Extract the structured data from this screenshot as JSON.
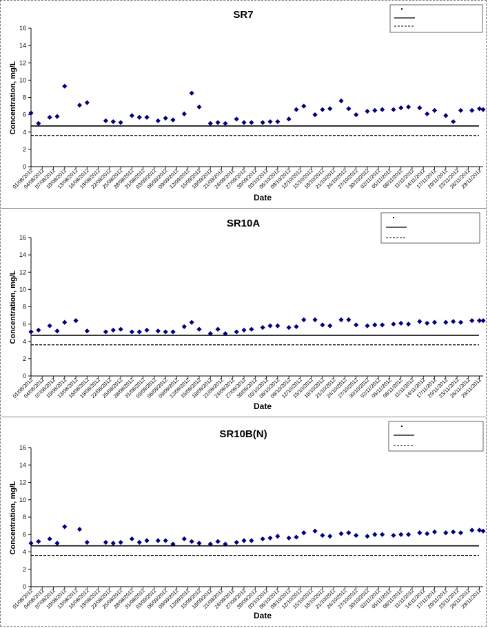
{
  "chart_data": [
    {
      "type": "scatter",
      "title": "SR7",
      "xlabel": "Date",
      "ylabel": "Concentration, mg/L",
      "ylim": [
        0,
        16
      ],
      "yticks": [
        0,
        2,
        4,
        6,
        8,
        10,
        12,
        14,
        16
      ],
      "xlim": [
        "01/08/2012",
        "30/11/2012"
      ],
      "xticks": [
        "01/08/2012",
        "04/08/2012",
        "07/08/2012",
        "10/08/2012",
        "13/08/2012",
        "16/08/2012",
        "19/08/2012",
        "22/08/2012",
        "25/08/2012",
        "28/08/2012",
        "31/08/2012",
        "03/09/2012",
        "06/09/2012",
        "09/09/2012",
        "12/09/2012",
        "15/09/2012",
        "18/09/2012",
        "21/09/2012",
        "24/09/2012",
        "27/09/2012",
        "30/09/2012",
        "03/10/2012",
        "06/10/2012",
        "09/10/2012",
        "12/10/2012",
        "15/10/2012",
        "18/10/2012",
        "21/10/2012",
        "24/10/2012",
        "27/10/2012",
        "30/10/2012",
        "02/11/2012",
        "05/11/2012",
        "08/11/2012",
        "11/11/2012",
        "14/11/2012",
        "17/11/2012",
        "20/11/2012",
        "23/11/2012",
        "26/11/2012",
        "29/11/2012"
      ],
      "grid": false,
      "legend_position": "top-right",
      "marker_color": "#000080",
      "series": [
        {
          "style": "markers",
          "points": [
            [
              "01/08/2012",
              6.2
            ],
            [
              "03/08/2012",
              5.0
            ],
            [
              "06/08/2012",
              5.7
            ],
            [
              "08/08/2012",
              5.8
            ],
            [
              "10/08/2012",
              9.3
            ],
            [
              "14/08/2012",
              7.1
            ],
            [
              "16/08/2012",
              7.4
            ],
            [
              "21/08/2012",
              5.3
            ],
            [
              "23/08/2012",
              5.2
            ],
            [
              "25/08/2012",
              5.1
            ],
            [
              "28/08/2012",
              5.9
            ],
            [
              "30/08/2012",
              5.7
            ],
            [
              "01/09/2012",
              5.7
            ],
            [
              "04/09/2012",
              5.3
            ],
            [
              "06/09/2012",
              5.6
            ],
            [
              "08/09/2012",
              5.4
            ],
            [
              "11/09/2012",
              6.1
            ],
            [
              "13/09/2012",
              8.5
            ],
            [
              "15/09/2012",
              6.9
            ],
            [
              "18/09/2012",
              5.0
            ],
            [
              "20/09/2012",
              5.1
            ],
            [
              "22/09/2012",
              5.0
            ],
            [
              "25/09/2012",
              5.5
            ],
            [
              "27/09/2012",
              5.1
            ],
            [
              "29/09/2012",
              5.1
            ],
            [
              "02/10/2012",
              5.1
            ],
            [
              "04/10/2012",
              5.2
            ],
            [
              "06/10/2012",
              5.2
            ],
            [
              "09/10/2012",
              5.5
            ],
            [
              "11/10/2012",
              6.6
            ],
            [
              "13/10/2012",
              7.0
            ],
            [
              "16/10/2012",
              6.0
            ],
            [
              "18/10/2012",
              6.6
            ],
            [
              "20/10/2012",
              6.7
            ],
            [
              "23/10/2012",
              7.6
            ],
            [
              "25/10/2012",
              6.7
            ],
            [
              "27/10/2012",
              6.0
            ],
            [
              "30/10/2012",
              6.4
            ],
            [
              "01/11/2012",
              6.5
            ],
            [
              "03/11/2012",
              6.6
            ],
            [
              "06/11/2012",
              6.6
            ],
            [
              "08/11/2012",
              6.8
            ],
            [
              "10/11/2012",
              6.9
            ],
            [
              "13/11/2012",
              6.8
            ],
            [
              "15/11/2012",
              6.1
            ],
            [
              "17/11/2012",
              6.5
            ],
            [
              "20/11/2012",
              5.9
            ],
            [
              "22/11/2012",
              5.2
            ],
            [
              "24/11/2012",
              6.5
            ],
            [
              "27/11/2012",
              6.5
            ],
            [
              "29/11/2012",
              6.7
            ],
            [
              "30/11/2012",
              6.6
            ]
          ]
        },
        {
          "style": "solid",
          "value": 4.7
        },
        {
          "style": "dashed",
          "value": 3.6
        }
      ]
    },
    {
      "type": "scatter",
      "title": "SR10A",
      "xlabel": "Date",
      "ylabel": "Concentration, mg/L",
      "ylim": [
        0,
        16
      ],
      "yticks": [
        0,
        2,
        4,
        6,
        8,
        10,
        12,
        14,
        16
      ],
      "xlim": [
        "01/08/2012",
        "30/11/2012"
      ],
      "xticks": [
        "01/08/2012",
        "04/08/2012",
        "07/08/2012",
        "10/08/2012",
        "13/08/2012",
        "16/08/2012",
        "19/08/2012",
        "22/08/2012",
        "25/08/2012",
        "28/08/2012",
        "31/08/2012",
        "03/09/2012",
        "06/09/2012",
        "09/09/2012",
        "12/09/2012",
        "15/09/2012",
        "18/09/2012",
        "21/09/2012",
        "24/09/2012",
        "27/09/2012",
        "30/09/2012",
        "03/10/2012",
        "06/10/2012",
        "09/10/2012",
        "12/10/2012",
        "15/10/2012",
        "18/10/2012",
        "21/10/2012",
        "24/10/2012",
        "27/10/2012",
        "30/10/2012",
        "02/11/2012",
        "05/11/2012",
        "08/11/2012",
        "11/11/2012",
        "14/11/2012",
        "17/11/2012",
        "20/11/2012",
        "23/11/2012",
        "26/11/2012",
        "29/11/2012"
      ],
      "grid": false,
      "legend_position": "top-right",
      "marker_color": "#000080",
      "series": [
        {
          "style": "markers",
          "points": [
            [
              "01/08/2012",
              5.1
            ],
            [
              "03/08/2012",
              5.3
            ],
            [
              "06/08/2012",
              5.8
            ],
            [
              "08/08/2012",
              5.2
            ],
            [
              "10/08/2012",
              6.2
            ],
            [
              "13/08/2012",
              6.4
            ],
            [
              "16/08/2012",
              5.2
            ],
            [
              "21/08/2012",
              5.1
            ],
            [
              "23/08/2012",
              5.3
            ],
            [
              "25/08/2012",
              5.4
            ],
            [
              "28/08/2012",
              5.1
            ],
            [
              "30/08/2012",
              5.1
            ],
            [
              "01/09/2012",
              5.3
            ],
            [
              "04/09/2012",
              5.2
            ],
            [
              "06/09/2012",
              5.1
            ],
            [
              "08/09/2012",
              5.1
            ],
            [
              "11/09/2012",
              5.7
            ],
            [
              "13/09/2012",
              6.2
            ],
            [
              "15/09/2012",
              5.4
            ],
            [
              "18/09/2012",
              4.9
            ],
            [
              "20/09/2012",
              5.4
            ],
            [
              "22/09/2012",
              4.9
            ],
            [
              "25/09/2012",
              5.1
            ],
            [
              "27/09/2012",
              5.3
            ],
            [
              "29/09/2012",
              5.4
            ],
            [
              "02/10/2012",
              5.6
            ],
            [
              "04/10/2012",
              5.8
            ],
            [
              "06/10/2012",
              5.8
            ],
            [
              "09/10/2012",
              5.6
            ],
            [
              "11/10/2012",
              5.7
            ],
            [
              "13/10/2012",
              6.5
            ],
            [
              "16/10/2012",
              6.5
            ],
            [
              "18/10/2012",
              5.9
            ],
            [
              "20/10/2012",
              5.8
            ],
            [
              "23/10/2012",
              6.5
            ],
            [
              "25/10/2012",
              6.5
            ],
            [
              "27/10/2012",
              5.9
            ],
            [
              "30/10/2012",
              5.8
            ],
            [
              "01/11/2012",
              5.9
            ],
            [
              "03/11/2012",
              5.9
            ],
            [
              "06/11/2012",
              6.0
            ],
            [
              "08/11/2012",
              6.1
            ],
            [
              "10/11/2012",
              6.0
            ],
            [
              "13/11/2012",
              6.3
            ],
            [
              "15/11/2012",
              6.1
            ],
            [
              "17/11/2012",
              6.2
            ],
            [
              "20/11/2012",
              6.2
            ],
            [
              "22/11/2012",
              6.3
            ],
            [
              "24/11/2012",
              6.2
            ],
            [
              "27/11/2012",
              6.4
            ],
            [
              "29/11/2012",
              6.4
            ],
            [
              "30/11/2012",
              6.4
            ]
          ]
        },
        {
          "style": "solid",
          "value": 4.7
        },
        {
          "style": "dashed",
          "value": 3.6
        }
      ]
    },
    {
      "type": "scatter",
      "title": "SR10B(N)",
      "xlabel": "Date",
      "ylabel": "Concentration, mg/L",
      "ylim": [
        0,
        16
      ],
      "yticks": [
        0,
        2,
        4,
        6,
        8,
        10,
        12,
        14,
        16
      ],
      "xlim": [
        "01/08/2012",
        "30/11/2012"
      ],
      "xticks": [
        "01/08/2012",
        "04/08/2012",
        "07/08/2012",
        "10/08/2012",
        "13/08/2012",
        "16/08/2012",
        "19/08/2012",
        "22/08/2012",
        "25/08/2012",
        "28/08/2012",
        "31/08/2012",
        "03/09/2012",
        "06/09/2012",
        "09/09/2012",
        "12/09/2012",
        "15/09/2012",
        "18/09/2012",
        "21/09/2012",
        "24/09/2012",
        "27/09/2012",
        "30/09/2012",
        "03/10/2012",
        "06/10/2012",
        "09/10/2012",
        "12/10/2012",
        "15/10/2012",
        "18/10/2012",
        "21/10/2012",
        "24/10/2012",
        "27/10/2012",
        "30/10/2012",
        "02/11/2012",
        "05/11/2012",
        "08/11/2012",
        "11/11/2012",
        "14/11/2012",
        "17/11/2012",
        "20/11/2012",
        "23/11/2012",
        "26/11/2012",
        "29/11/2012"
      ],
      "grid": false,
      "legend_position": "top-right",
      "marker_color": "#000080",
      "series": [
        {
          "style": "markers",
          "points": [
            [
              "01/08/2012",
              5.0
            ],
            [
              "03/08/2012",
              5.2
            ],
            [
              "06/08/2012",
              5.5
            ],
            [
              "08/08/2012",
              5.0
            ],
            [
              "10/08/2012",
              6.9
            ],
            [
              "14/08/2012",
              6.6
            ],
            [
              "16/08/2012",
              5.1
            ],
            [
              "21/08/2012",
              5.1
            ],
            [
              "23/08/2012",
              5.0
            ],
            [
              "25/08/2012",
              5.1
            ],
            [
              "28/08/2012",
              5.5
            ],
            [
              "30/08/2012",
              5.1
            ],
            [
              "01/09/2012",
              5.3
            ],
            [
              "04/09/2012",
              5.3
            ],
            [
              "06/09/2012",
              5.3
            ],
            [
              "08/09/2012",
              4.9
            ],
            [
              "11/09/2012",
              5.5
            ],
            [
              "13/09/2012",
              5.2
            ],
            [
              "15/09/2012",
              5.0
            ],
            [
              "18/09/2012",
              4.9
            ],
            [
              "20/09/2012",
              5.2
            ],
            [
              "22/09/2012",
              4.9
            ],
            [
              "25/09/2012",
              5.1
            ],
            [
              "27/09/2012",
              5.3
            ],
            [
              "29/09/2012",
              5.3
            ],
            [
              "02/10/2012",
              5.5
            ],
            [
              "04/10/2012",
              5.6
            ],
            [
              "06/10/2012",
              5.8
            ],
            [
              "09/10/2012",
              5.6
            ],
            [
              "11/10/2012",
              5.7
            ],
            [
              "13/10/2012",
              6.2
            ],
            [
              "16/10/2012",
              6.4
            ],
            [
              "18/10/2012",
              5.9
            ],
            [
              "20/10/2012",
              5.8
            ],
            [
              "23/10/2012",
              6.1
            ],
            [
              "25/10/2012",
              6.2
            ],
            [
              "27/10/2012",
              5.9
            ],
            [
              "30/10/2012",
              5.8
            ],
            [
              "01/11/2012",
              6.0
            ],
            [
              "03/11/2012",
              6.0
            ],
            [
              "06/11/2012",
              5.9
            ],
            [
              "08/11/2012",
              6.0
            ],
            [
              "10/11/2012",
              6.0
            ],
            [
              "13/11/2012",
              6.2
            ],
            [
              "15/11/2012",
              6.1
            ],
            [
              "17/11/2012",
              6.3
            ],
            [
              "20/11/2012",
              6.2
            ],
            [
              "22/11/2012",
              6.3
            ],
            [
              "24/11/2012",
              6.2
            ],
            [
              "27/11/2012",
              6.5
            ],
            [
              "29/11/2012",
              6.5
            ],
            [
              "30/11/2012",
              6.4
            ]
          ]
        },
        {
          "style": "solid",
          "value": 4.7
        },
        {
          "style": "dashed",
          "value": 3.6
        }
      ]
    }
  ]
}
